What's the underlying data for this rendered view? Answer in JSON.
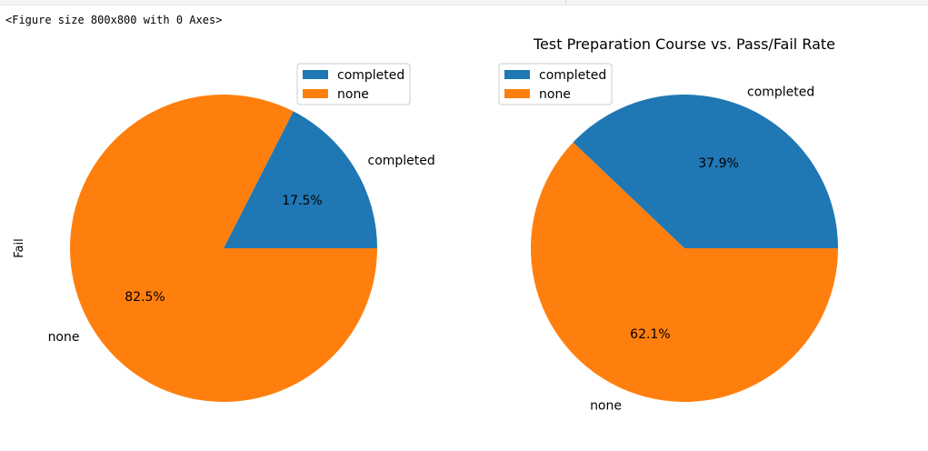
{
  "output_text": "<Figure size 800x800 with 0 Axes>",
  "chart_data": [
    {
      "type": "pie",
      "title": "",
      "ylabel": "Fail",
      "categories": [
        "completed",
        "none"
      ],
      "values": [
        17.5,
        82.5
      ],
      "autopct": [
        "17.5%",
        "82.5%"
      ],
      "colors": [
        "#1f77b4",
        "#ff7f0e"
      ],
      "legend": {
        "entries": [
          "completed",
          "none"
        ],
        "placement": "upper-right"
      }
    },
    {
      "type": "pie",
      "title": "Test Preparation Course vs. Pass/Fail Rate",
      "ylabel": "",
      "categories": [
        "completed",
        "none"
      ],
      "values": [
        37.9,
        62.1
      ],
      "autopct": [
        "37.9%",
        "62.1%"
      ],
      "colors": [
        "#1f77b4",
        "#ff7f0e"
      ],
      "legend": {
        "entries": [
          "completed",
          "none"
        ],
        "placement": "upper-left"
      }
    }
  ]
}
